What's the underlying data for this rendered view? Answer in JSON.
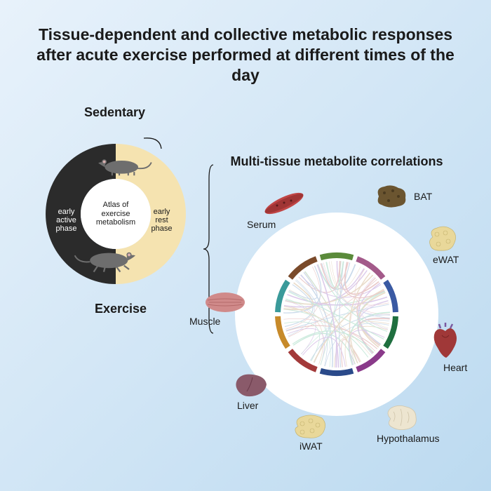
{
  "title_line1": "Tissue-dependent and collective metabolic responses",
  "title_line2": "after acute exercise performed at different times of the day",
  "title_fontsize": 23,
  "left": {
    "sedentary_label": "Sedentary",
    "exercise_label": "Exercise",
    "active_phase_label": "early active phase",
    "rest_phase_label": "early rest phase",
    "center_line1": "Atlas of",
    "center_line2": "exercise metabolism",
    "label_fontsize": 18,
    "donut_colors": {
      "dark": "#2b2b2b",
      "light": "#f5e3b0"
    },
    "mouse_body": "#6e6e6e",
    "mouse_ear": "#d9b0b0"
  },
  "right": {
    "title": "Multi-tissue metabolite correlations",
    "title_fontsize": 18,
    "circle_bg": "#ffffff",
    "tissues": [
      {
        "name": "Serum",
        "angle": -55,
        "color": "#b83a3a"
      },
      {
        "name": "BAT",
        "angle": 10,
        "color": "#6b5530"
      },
      {
        "name": "eWAT",
        "angle": 50,
        "color": "#e9d89a"
      },
      {
        "name": "Heart",
        "angle": 100,
        "color": "#a03838"
      },
      {
        "name": "Hypothalamus",
        "angle": 140,
        "color": "#e8dfc8"
      },
      {
        "name": "iWAT",
        "angle": 180,
        "color": "#e9d89a"
      },
      {
        "name": "Liver",
        "angle": 215,
        "color": "#8a5a6a"
      },
      {
        "name": "Muscle",
        "angle": 260,
        "color": "#c87575"
      }
    ],
    "ring_colors": [
      "#1f6f3f",
      "#8a3a8a",
      "#2a4a8a",
      "#a33a3a",
      "#c78a2a",
      "#3a9a9a",
      "#7a4a2a",
      "#5a8a3a",
      "#a35a8a",
      "#3a5aa3"
    ],
    "chord_colors": [
      "#d9a0a0",
      "#a0bcd9",
      "#d9c0a0",
      "#a0d9c0",
      "#c0a0d9"
    ]
  }
}
